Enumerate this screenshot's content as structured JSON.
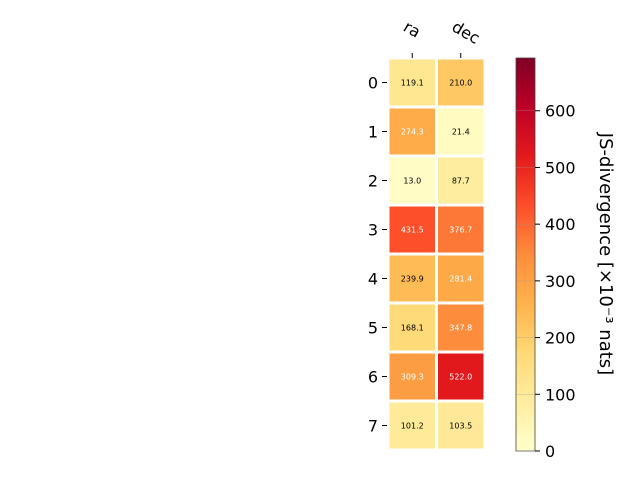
{
  "chart_data": {
    "type": "heatmap",
    "columns": [
      "ra",
      "dec"
    ],
    "rows": [
      "0",
      "1",
      "2",
      "3",
      "4",
      "5",
      "6",
      "7"
    ],
    "values": [
      [
        119.1,
        210.0
      ],
      [
        274.3,
        21.4
      ],
      [
        13.0,
        87.7
      ],
      [
        431.5,
        376.7
      ],
      [
        239.9,
        281.4
      ],
      [
        168.1,
        347.8
      ],
      [
        309.3,
        522.0
      ],
      [
        101.2,
        103.5
      ]
    ],
    "cell_labels": [
      [
        "119.1",
        "210.0"
      ],
      [
        "274.3",
        "21.4"
      ],
      [
        "13.0",
        "87.7"
      ],
      [
        "431.5",
        "376.7"
      ],
      [
        "239.9",
        "281.4"
      ],
      [
        "168.1",
        "347.8"
      ],
      [
        "309.3",
        "522.0"
      ],
      [
        "101.2",
        "103.5"
      ]
    ],
    "colorbar": {
      "label": "JS-divergence [×10⁻³ nats]",
      "range": [
        0,
        693
      ],
      "ticks": [
        "0",
        "100",
        "200",
        "300",
        "400",
        "500",
        "600"
      ],
      "tick_values": [
        0,
        100,
        200,
        300,
        400,
        500,
        600
      ],
      "colormap": "YlOrRd"
    }
  }
}
